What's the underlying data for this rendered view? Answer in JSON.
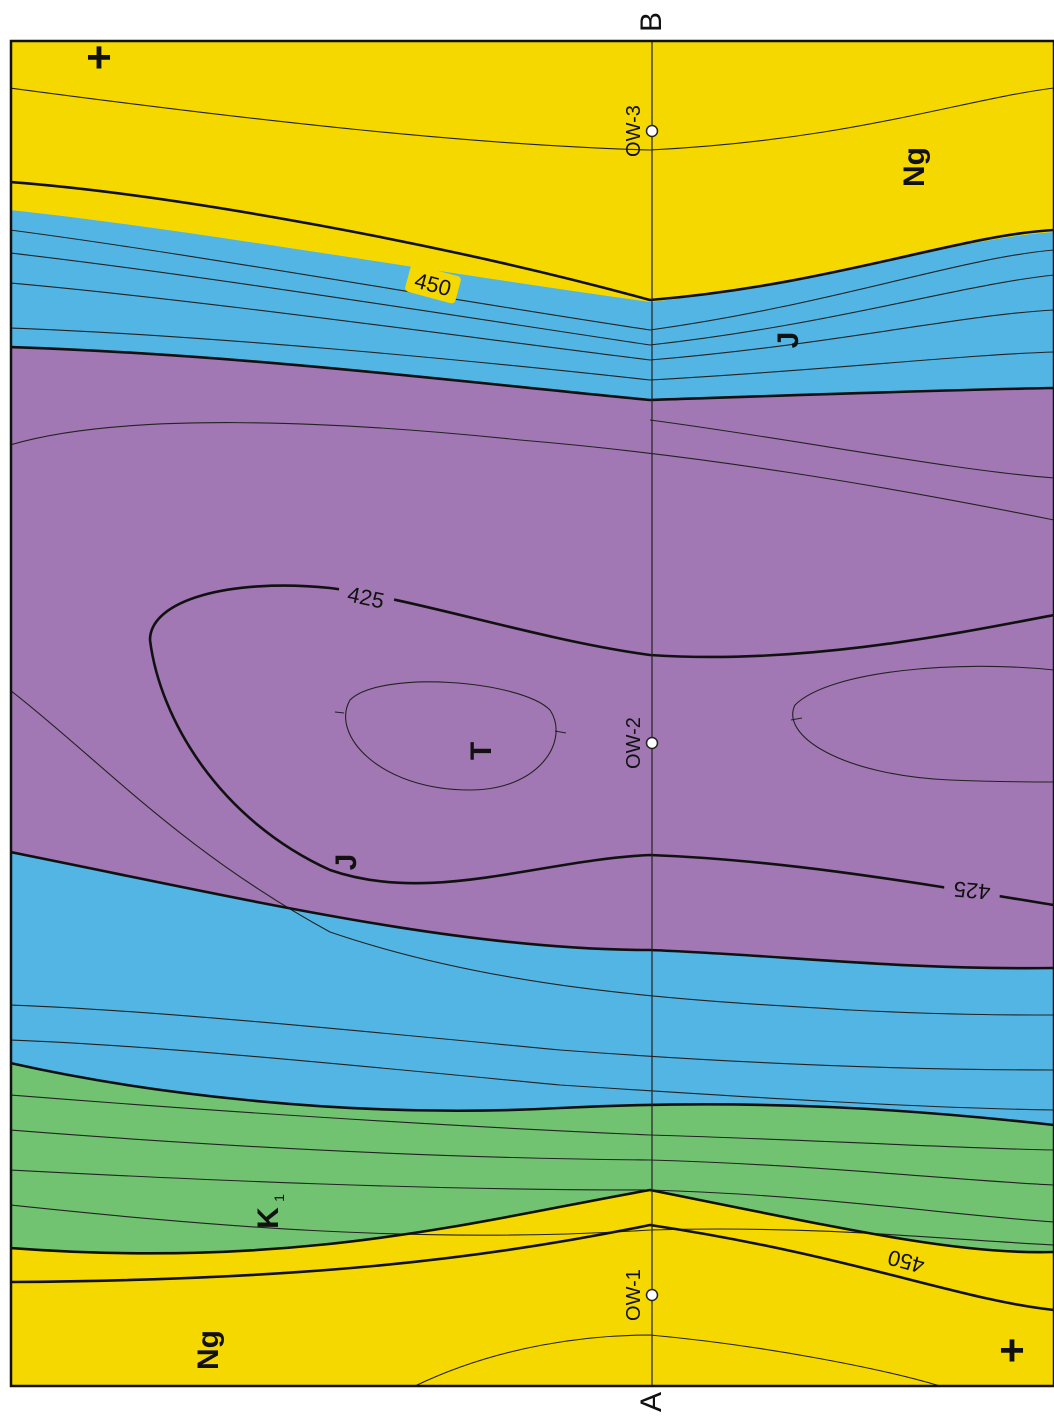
{
  "colors": {
    "Ng": "#f5d800",
    "K1": "#72c371",
    "J": "#52b5e3",
    "T": "#a178b3",
    "frame": "#111111"
  },
  "units": {
    "Ng_top": "Ng",
    "Ng_bottom": "Ng",
    "K1": "K",
    "K1_sub": "1",
    "J_top": "J",
    "J_bottom": "J",
    "T": "T"
  },
  "profile": {
    "start": "A",
    "end": "B"
  },
  "wells": [
    {
      "name": "OW-1"
    },
    {
      "name": "OW-2"
    },
    {
      "name": "OW-3"
    }
  ],
  "contours": {
    "c450_upper": "450",
    "c450_lower": "450",
    "c425_upper": "425",
    "c425_lower": "425"
  },
  "symbols": {
    "plus_top": "+",
    "plus_bottom": "+"
  }
}
